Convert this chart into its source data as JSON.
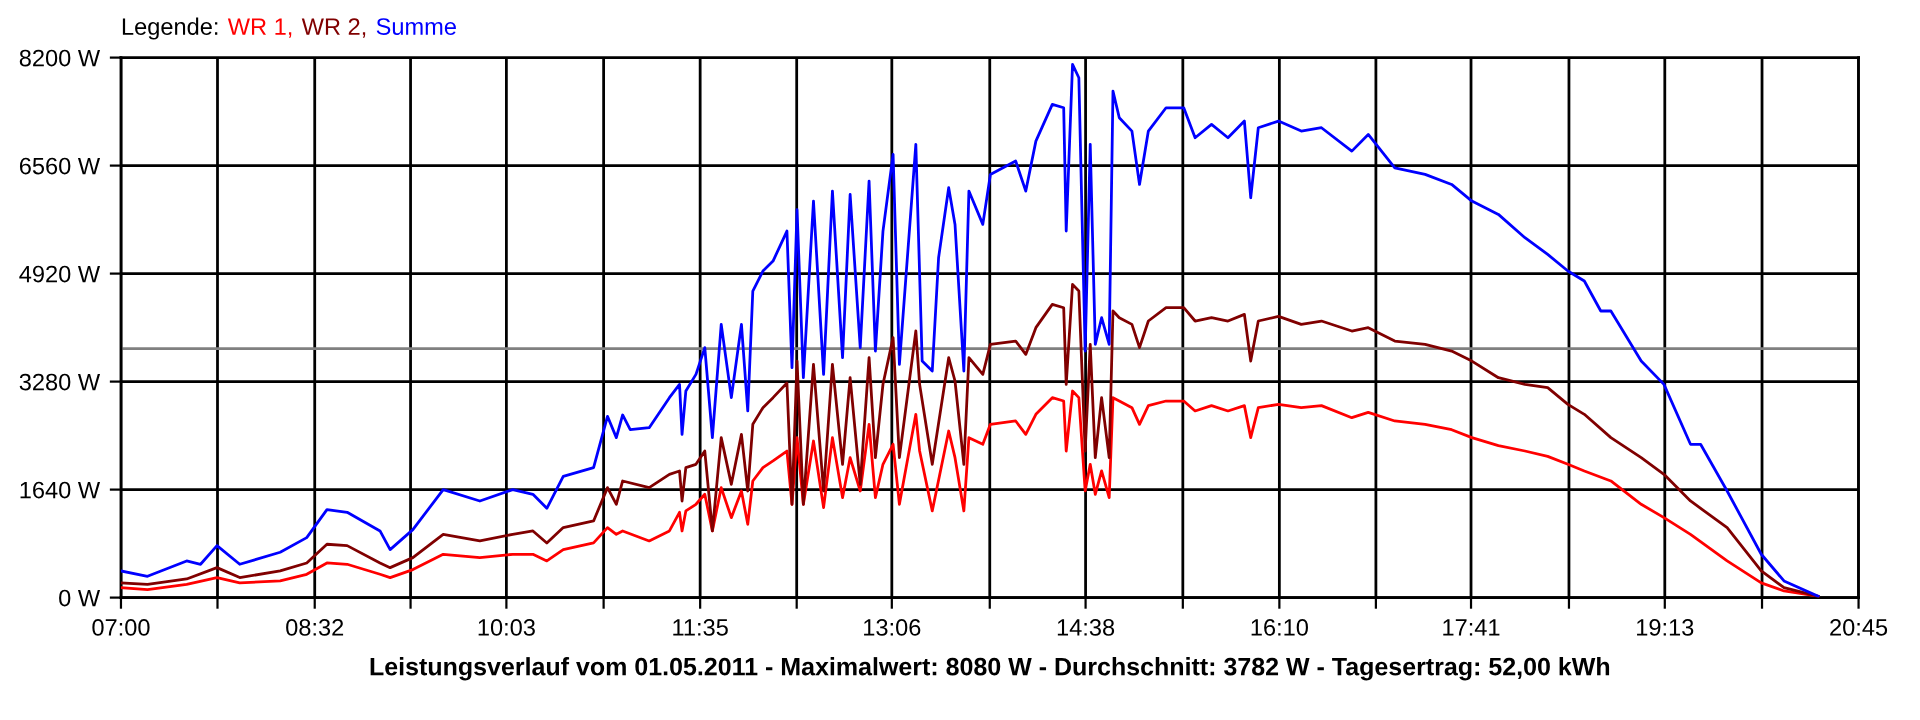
{
  "chart_data": {
    "type": "line",
    "xlabel": "Leistungsverlauf vom 01.05.2011 - Maximalwert: 8080 W - Durchschnitt: 3782 W - Tagesertrag: 52,00 kWh",
    "legend_title": "Legende:",
    "annotations": [
      ",",
      ","
    ],
    "legend": "top left",
    "grid": true,
    "xlim": [
      7.0,
      20.75
    ],
    "xticks": [
      {
        "value": 7.0,
        "label": "07:00"
      },
      {
        "value": 7.7639,
        "label": null
      },
      {
        "value": 8.5333,
        "label": "08:32"
      },
      {
        "value": 9.2917,
        "label": null
      },
      {
        "value": 10.05,
        "label": "10:03"
      },
      {
        "value": 10.8194,
        "label": null
      },
      {
        "value": 11.5833,
        "label": "11:35"
      },
      {
        "value": 12.3472,
        "label": null
      },
      {
        "value": 13.1,
        "label": "13:06"
      },
      {
        "value": 13.875,
        "label": null
      },
      {
        "value": 14.6333,
        "label": "14:38"
      },
      {
        "value": 15.4028,
        "label": null
      },
      {
        "value": 16.1667,
        "label": "16:10"
      },
      {
        "value": 16.9306,
        "label": null
      },
      {
        "value": 17.6833,
        "label": "17:41"
      },
      {
        "value": 18.4583,
        "label": null
      },
      {
        "value": 19.2167,
        "label": "19:13"
      },
      {
        "value": 19.9861,
        "label": null
      },
      {
        "value": 20.75,
        "label": "20:45"
      }
    ],
    "ylim": [
      0,
      8200
    ],
    "yticks": [
      {
        "value": 0,
        "label": "0 W"
      },
      {
        "value": 1640,
        "label": "1640 W"
      },
      {
        "value": 3280,
        "label": "3280 W"
      },
      {
        "value": 4920,
        "label": "4920 W"
      },
      {
        "value": 6560,
        "label": "6560 W"
      },
      {
        "value": 8200,
        "label": "8200 W"
      }
    ],
    "ref_lines": [
      {
        "axis": "y",
        "value": 3782,
        "color": "#808080"
      }
    ],
    "series": [
      {
        "name": "WR 1",
        "color": "#ff0000",
        "x": [
          7.0,
          7.21,
          7.52,
          7.76,
          7.94,
          8.26,
          8.47,
          8.63,
          8.79,
          9.05,
          9.13,
          9.31,
          9.55,
          9.84,
          10.1,
          10.26,
          10.37,
          10.5,
          10.74,
          10.85,
          10.92,
          10.97,
          11.18,
          11.34,
          11.42,
          11.44,
          11.47,
          11.55,
          11.62,
          11.68,
          11.75,
          11.83,
          11.91,
          11.96,
          12.0,
          12.08,
          12.16,
          12.27,
          12.31,
          12.35,
          12.4,
          12.48,
          12.56,
          12.63,
          12.71,
          12.77,
          12.85,
          12.92,
          12.97,
          13.03,
          13.11,
          13.16,
          13.29,
          13.32,
          13.42,
          13.55,
          13.6,
          13.67,
          13.71,
          13.82,
          13.88,
          14.08,
          14.16,
          14.24,
          14.37,
          14.46,
          14.48,
          14.53,
          14.58,
          14.63,
          14.67,
          14.71,
          14.76,
          14.82,
          14.85,
          14.9,
          15.0,
          15.06,
          15.13,
          15.27,
          15.41,
          15.5,
          15.63,
          15.76,
          15.89,
          15.94,
          16.0,
          16.16,
          16.34,
          16.5,
          16.74,
          16.87,
          17.08,
          17.32,
          17.53,
          17.69,
          17.9,
          18.11,
          18.29,
          18.45,
          18.58,
          18.79,
          19.03,
          19.21,
          19.42,
          19.71,
          19.98,
          20.16,
          20.43
        ],
        "values": [
          152,
          121,
          202,
          304,
          223,
          253,
          354,
          526,
          506,
          354,
          304,
          425,
          658,
          607,
          658,
          658,
          557,
          729,
          830,
          1063,
          961,
          1012,
          860,
          1012,
          1295,
          1012,
          1316,
          1417,
          1569,
          1012,
          1670,
          1214,
          1619,
          1113,
          1771,
          1973,
          2075,
          2226,
          1417,
          2429,
          1417,
          2378,
          1366,
          2429,
          1518,
          2125,
          1619,
          2631,
          1518,
          2024,
          2328,
          1417,
          2783,
          2226,
          1316,
          2530,
          2125,
          1316,
          2429,
          2328,
          2631,
          2682,
          2479,
          2783,
          3036,
          2985,
          2226,
          3137,
          3036,
          1619,
          2024,
          1569,
          1923,
          1518,
          3036,
          2985,
          2884,
          2631,
          2915,
          2985,
          2985,
          2834,
          2915,
          2834,
          2915,
          2429,
          2884,
          2935,
          2884,
          2915,
          2732,
          2813,
          2682,
          2631,
          2550,
          2429,
          2307,
          2226,
          2145,
          2024,
          1923,
          1771,
          1417,
          1214,
          961,
          557,
          223,
          101,
          20
        ]
      },
      {
        "name": "WR 2",
        "color": "#800000",
        "x": [
          7.0,
          7.21,
          7.52,
          7.76,
          7.94,
          8.26,
          8.47,
          8.63,
          8.79,
          9.05,
          9.13,
          9.31,
          9.55,
          9.84,
          10.1,
          10.26,
          10.37,
          10.5,
          10.74,
          10.85,
          10.92,
          10.97,
          11.18,
          11.34,
          11.42,
          11.44,
          11.47,
          11.55,
          11.62,
          11.68,
          11.75,
          11.83,
          11.91,
          11.96,
          12.0,
          12.08,
          12.16,
          12.27,
          12.31,
          12.35,
          12.4,
          12.48,
          12.56,
          12.63,
          12.71,
          12.77,
          12.85,
          12.92,
          12.97,
          13.03,
          13.11,
          13.16,
          13.29,
          13.32,
          13.42,
          13.55,
          13.6,
          13.67,
          13.71,
          13.82,
          13.88,
          14.08,
          14.16,
          14.24,
          14.37,
          14.46,
          14.48,
          14.53,
          14.58,
          14.63,
          14.67,
          14.71,
          14.76,
          14.82,
          14.85,
          14.9,
          15.0,
          15.06,
          15.13,
          15.27,
          15.41,
          15.5,
          15.63,
          15.76,
          15.89,
          15.94,
          16.0,
          16.16,
          16.34,
          16.5,
          16.74,
          16.87,
          17.08,
          17.32,
          17.53,
          17.69,
          17.9,
          18.11,
          18.29,
          18.45,
          18.58,
          18.79,
          19.03,
          19.21,
          19.42,
          19.71,
          19.98,
          20.16,
          20.43
        ],
        "values": [
          223,
          202,
          283,
          455,
          304,
          405,
          526,
          810,
          789,
          526,
          455,
          607,
          961,
          860,
          961,
          1012,
          830,
          1063,
          1164,
          1670,
          1417,
          1771,
          1670,
          1872,
          1923,
          1467,
          1973,
          2024,
          2226,
          1012,
          2429,
          1720,
          2479,
          1619,
          2631,
          2884,
          3036,
          3259,
          1417,
          3592,
          1417,
          3542,
          1619,
          3542,
          2024,
          3340,
          1720,
          3644,
          2126,
          3240,
          3948,
          2126,
          4049,
          3238,
          2024,
          3643,
          3289,
          2024,
          3643,
          3390,
          3846,
          3896,
          3693,
          4099,
          4453,
          4402,
          3238,
          4756,
          4655,
          2226,
          3846,
          2125,
          3036,
          2125,
          4352,
          4250,
          4149,
          3795,
          4200,
          4402,
          4402,
          4200,
          4250,
          4200,
          4301,
          3592,
          4200,
          4271,
          4149,
          4200,
          4048,
          4099,
          3896,
          3846,
          3744,
          3592,
          3339,
          3238,
          3188,
          2935,
          2783,
          2429,
          2125,
          1872,
          1467,
          1063,
          405,
          152,
          20
        ]
      },
      {
        "name": "Summe",
        "color": "#0000ff",
        "x": [
          7.0,
          7.21,
          7.52,
          7.63,
          7.76,
          7.94,
          8.26,
          8.47,
          8.63,
          8.79,
          9.05,
          9.13,
          9.31,
          9.55,
          9.84,
          10.1,
          10.26,
          10.37,
          10.5,
          10.74,
          10.85,
          10.92,
          10.97,
          11.03,
          11.18,
          11.34,
          11.42,
          11.44,
          11.47,
          11.55,
          11.62,
          11.68,
          11.75,
          11.83,
          11.91,
          11.96,
          12.0,
          12.08,
          12.16,
          12.27,
          12.31,
          12.35,
          12.4,
          12.48,
          12.56,
          12.63,
          12.71,
          12.77,
          12.85,
          12.92,
          12.97,
          13.03,
          13.11,
          13.16,
          13.29,
          13.34,
          13.42,
          13.47,
          13.55,
          13.6,
          13.67,
          13.71,
          13.82,
          13.88,
          14.08,
          14.16,
          14.24,
          14.37,
          14.46,
          14.48,
          14.53,
          14.58,
          14.63,
          14.67,
          14.71,
          14.76,
          14.82,
          14.85,
          14.9,
          15.0,
          15.06,
          15.13,
          15.27,
          15.41,
          15.5,
          15.63,
          15.76,
          15.89,
          15.94,
          16.0,
          16.16,
          16.34,
          16.5,
          16.74,
          16.87,
          17.08,
          17.32,
          17.53,
          17.69,
          17.9,
          18.11,
          18.29,
          18.45,
          18.58,
          18.71,
          18.79,
          19.03,
          19.21,
          19.42,
          19.5,
          19.71,
          19.98,
          20.16,
          20.43
        ],
        "values": [
          405,
          324,
          557,
          506,
          789,
          506,
          688,
          911,
          1336,
          1295,
          1012,
          729,
          1032,
          1640,
          1467,
          1640,
          1569,
          1356,
          1842,
          1973,
          2753,
          2429,
          2773,
          2550,
          2580,
          3036,
          3238,
          2479,
          3137,
          3390,
          3795,
          2429,
          4149,
          3036,
          4149,
          2834,
          4655,
          4959,
          5110,
          5566,
          3491,
          5890,
          3339,
          6021,
          3390,
          6173,
          3643,
          6122,
          3795,
          6325,
          3744,
          5566,
          6730,
          3542,
          6882,
          3592,
          3441,
          5161,
          6224,
          5667,
          3441,
          6173,
          5667,
          6426,
          6629,
          6173,
          6932,
          7489,
          7438,
          5566,
          8096,
          7894,
          3744,
          6882,
          3846,
          4250,
          3846,
          7691,
          7286,
          7084,
          6274,
          7084,
          7438,
          7438,
          6983,
          7185,
          6983,
          7236,
          6072,
          7135,
          7236,
          7084,
          7135,
          6780,
          7033,
          6527,
          6426,
          6274,
          6021,
          5819,
          5465,
          5212,
          4959,
          4807,
          4352,
          4352,
          3592,
          3238,
          2328,
          2328,
          1619,
          658,
          253,
          20
        ]
      }
    ]
  }
}
